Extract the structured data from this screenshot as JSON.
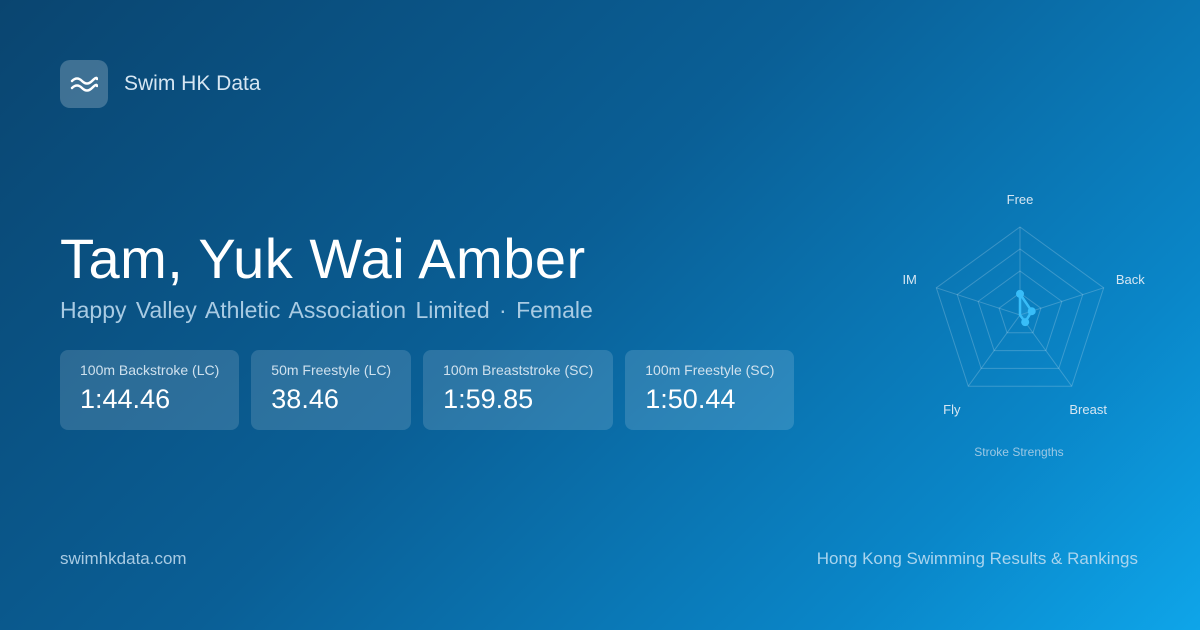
{
  "brand": {
    "name": "Swim HK Data",
    "icon": "waves-icon"
  },
  "swimmer": {
    "name": "Tam, Yuk Wai Amber",
    "club": "Happy Valley Athletic Association Limited",
    "separator": "·",
    "gender": "Female"
  },
  "best_times": [
    {
      "event": "100m Backstroke (LC)",
      "time": "1:44.46"
    },
    {
      "event": "50m Freestyle (LC)",
      "time": "38.46"
    },
    {
      "event": "100m Breaststroke (SC)",
      "time": "1:59.85"
    },
    {
      "event": "100m Freestyle (SC)",
      "time": "1:50.44"
    }
  ],
  "chart_data": {
    "type": "radar",
    "title": "Stroke Strengths",
    "axes": [
      "Free",
      "Back",
      "Breast",
      "Fly",
      "IM"
    ],
    "values": [
      0.24,
      0.14,
      0.1,
      0,
      0
    ],
    "range": [
      0,
      1
    ],
    "rings": 4,
    "color": "#38bdf8"
  },
  "footer": {
    "site": "swimhkdata.com",
    "tagline": "Hong Kong Swimming Results & Rankings"
  }
}
